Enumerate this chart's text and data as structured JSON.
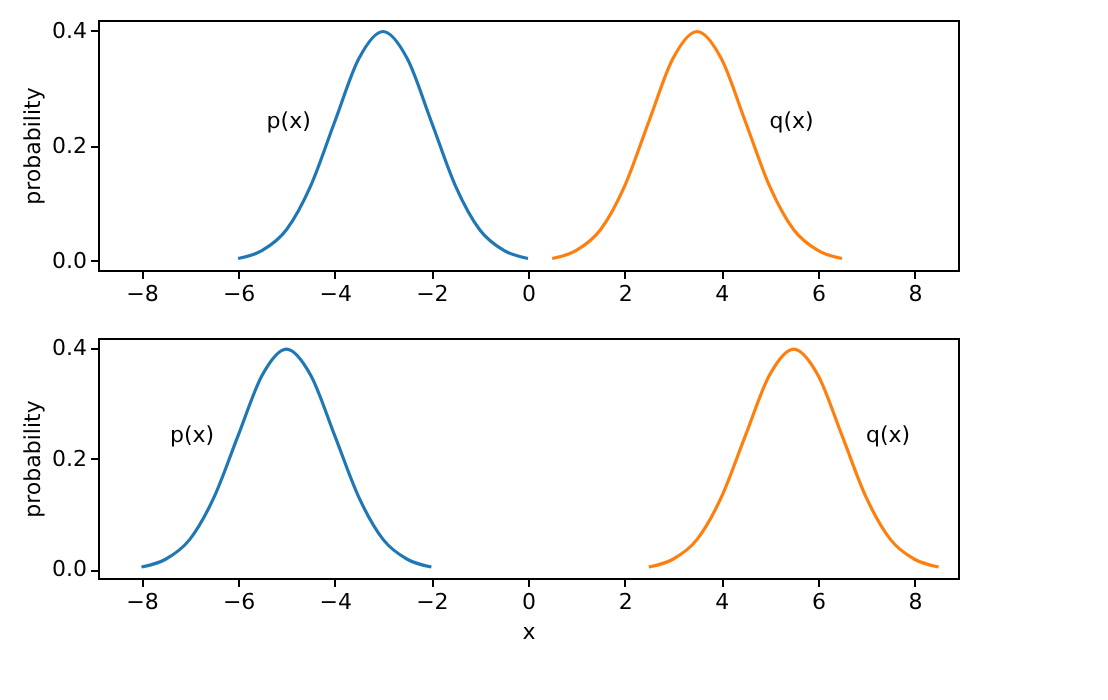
{
  "chart_data": [
    {
      "type": "line",
      "ylabel": "probability",
      "xlim": [
        -8.9,
        8.9
      ],
      "ylim": [
        -0.016,
        0.419
      ],
      "xticks": [
        -8,
        -6,
        -4,
        -2,
        0,
        2,
        4,
        6,
        8
      ],
      "yticks": [
        {
          "value": 0,
          "label": "0.0"
        },
        {
          "value": 0.2,
          "label": "0.2"
        },
        {
          "value": 0.4,
          "label": "0.4"
        }
      ],
      "grid": false,
      "legend": false,
      "series": [
        {
          "name": "p(x)",
          "color": "#1f77b4",
          "x": [
            -6,
            -5.5,
            -5,
            -4.5,
            -4,
            -3.5,
            -3,
            -2.5,
            -2,
            -1.5,
            -1,
            -0.5,
            0
          ],
          "values": [
            0.004,
            0.018,
            0.054,
            0.13,
            0.242,
            0.352,
            0.399,
            0.352,
            0.242,
            0.13,
            0.054,
            0.018,
            0.004
          ]
        },
        {
          "name": "q(x)",
          "color": "#ff7f0e",
          "x": [
            0.5,
            1,
            1.5,
            2,
            2.5,
            3,
            3.5,
            4,
            4.5,
            5,
            5.5,
            6,
            6.5
          ],
          "values": [
            0.004,
            0.018,
            0.054,
            0.13,
            0.242,
            0.352,
            0.399,
            0.352,
            0.242,
            0.13,
            0.054,
            0.018,
            0.004
          ]
        }
      ]
    },
    {
      "type": "line",
      "xlabel": "x",
      "ylabel": "probability",
      "xlim": [
        -8.9,
        8.9
      ],
      "ylim": [
        -0.016,
        0.419
      ],
      "xticks": [
        -8,
        -6,
        -4,
        -2,
        0,
        2,
        4,
        6,
        8
      ],
      "yticks": [
        {
          "value": 0,
          "label": "0.0"
        },
        {
          "value": 0.2,
          "label": "0.2"
        },
        {
          "value": 0.4,
          "label": "0.4"
        }
      ],
      "grid": false,
      "legend": false,
      "series": [
        {
          "name": "p(x)",
          "color": "#1f77b4",
          "x": [
            -8,
            -7.5,
            -7,
            -6.5,
            -6,
            -5.5,
            -5,
            -4.5,
            -4,
            -3.5,
            -3,
            -2.5,
            -2
          ],
          "values": [
            0.004,
            0.018,
            0.054,
            0.13,
            0.242,
            0.352,
            0.399,
            0.352,
            0.242,
            0.13,
            0.054,
            0.018,
            0.004
          ]
        },
        {
          "name": "q(x)",
          "color": "#ff7f0e",
          "x": [
            2.5,
            3,
            3.5,
            4,
            4.5,
            5,
            5.5,
            6,
            6.5,
            7,
            7.5,
            8,
            8.5
          ],
          "values": [
            0.004,
            0.018,
            0.054,
            0.13,
            0.242,
            0.352,
            0.399,
            0.352,
            0.242,
            0.13,
            0.054,
            0.018,
            0.004
          ]
        }
      ]
    }
  ]
}
